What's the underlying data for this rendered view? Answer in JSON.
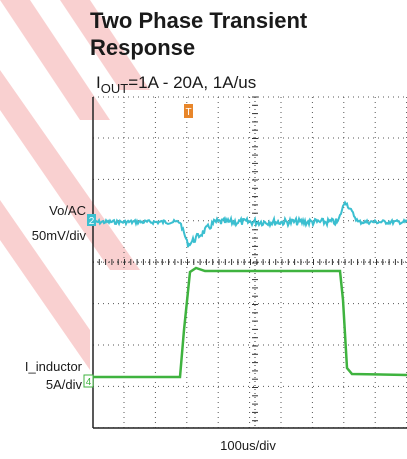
{
  "header": {
    "title_lines": [
      "Two Phase Transient",
      "Response"
    ],
    "subtitle": {
      "prefix": "I",
      "subscript": "OUT",
      "text": "=1A - 20A, 1A/us"
    }
  },
  "scope": {
    "trigger": "T",
    "channels": [
      {
        "marker": "2",
        "label": "Vo/AC",
        "scale": "50mV/div"
      },
      {
        "marker": "4",
        "label": "I_inductor",
        "scale": "5A/div"
      }
    ],
    "timebase": "100us/div"
  }
}
